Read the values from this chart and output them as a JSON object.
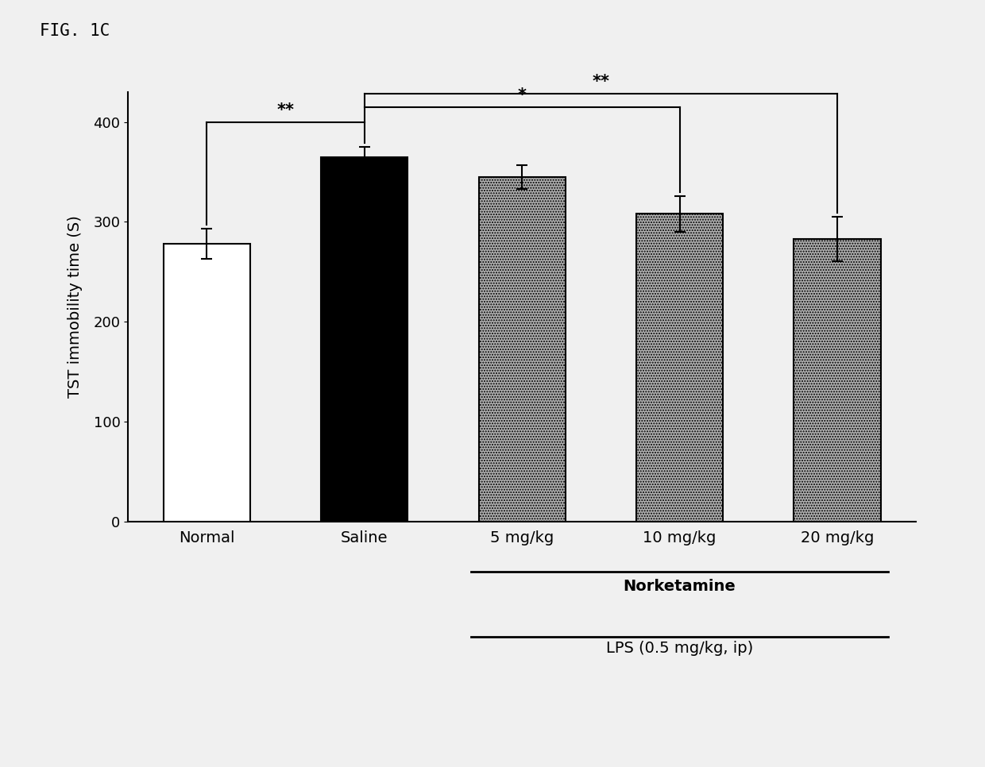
{
  "categories": [
    "Normal",
    "Saline",
    "5 mg/kg",
    "10 mg/kg",
    "20 mg/kg"
  ],
  "values": [
    278,
    365,
    345,
    308,
    283
  ],
  "errors": [
    15,
    10,
    12,
    18,
    22
  ],
  "bar_colors": [
    "white",
    "black",
    "#b0b0b0",
    "#b0b0b0",
    "#b0b0b0"
  ],
  "bar_edgecolors": [
    "black",
    "black",
    "black",
    "black",
    "black"
  ],
  "bar_hatches": [
    "",
    "",
    ".....",
    ".....",
    "....."
  ],
  "ylabel": "TST immobility time (S)",
  "ylim": [
    0,
    430
  ],
  "yticks": [
    0,
    100,
    200,
    300,
    400
  ],
  "fig_label": "FIG. 1C",
  "norketamine_label": "Norketamine",
  "lps_label": "LPS (0.5 mg/kg, ip)",
  "sig1_label": "**",
  "sig2_label": "*",
  "sig3_label": "**",
  "background_color": "#f0f0f0",
  "bar_width": 0.55
}
